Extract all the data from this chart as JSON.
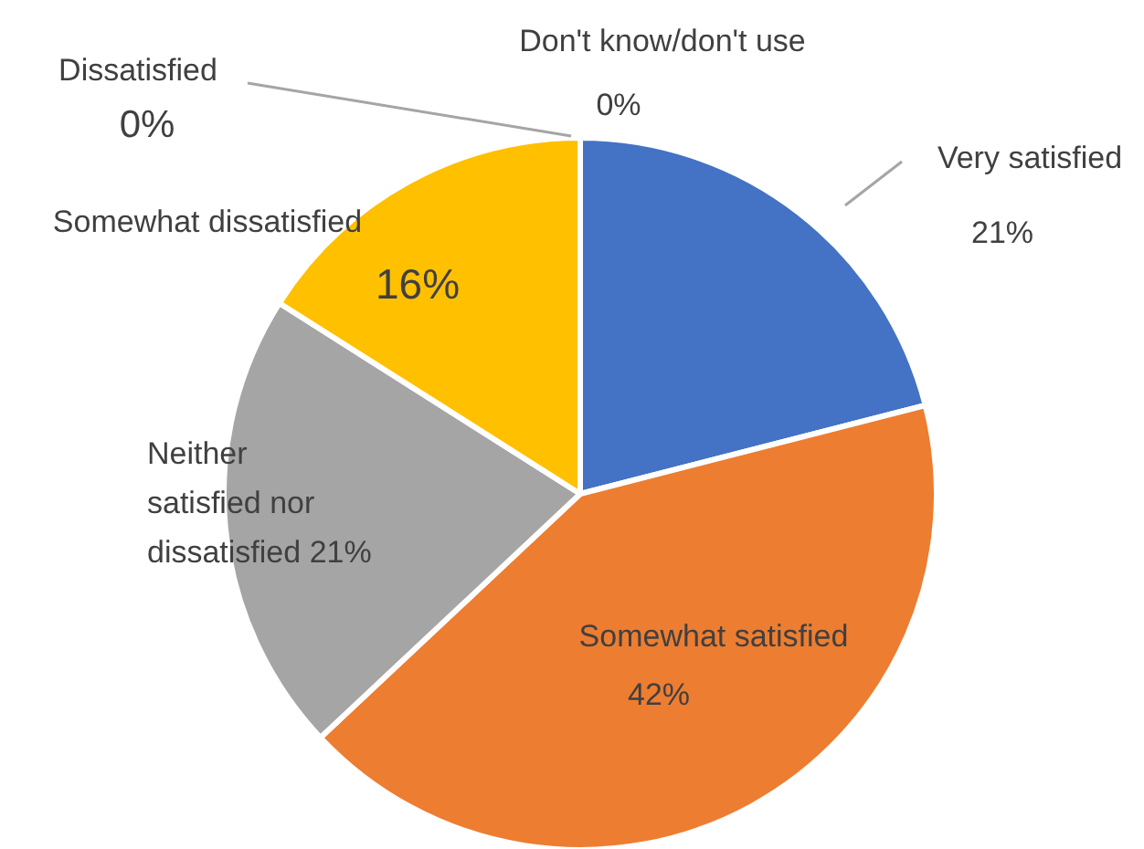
{
  "chart_data": {
    "type": "pie",
    "categories": [
      "Very satisfied",
      "Somewhat satisfied",
      "Neither satisfied nor dissatisfied",
      "Somewhat dissatisfied",
      "Dissatisfied",
      "Don't know/don't use"
    ],
    "values": [
      21,
      42,
      21,
      16,
      0,
      0
    ],
    "value_labels": [
      "21%",
      "42%",
      "21%",
      "16%",
      "0%",
      "0%"
    ],
    "colors": [
      "#4472c4",
      "#ed7d31",
      "#a5a5a5",
      "#ffc000",
      "#5b9bd5",
      "#70ad47"
    ]
  }
}
